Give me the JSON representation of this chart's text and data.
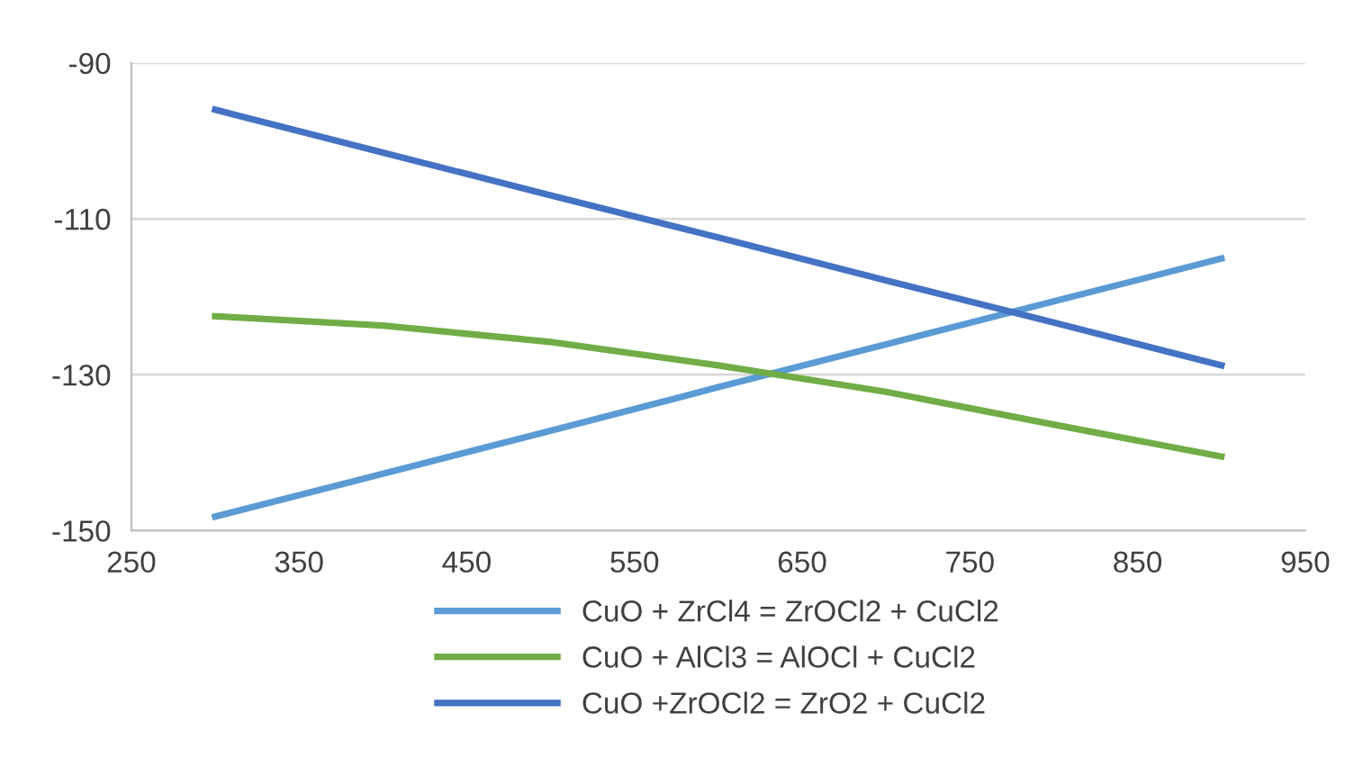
{
  "chart_data": {
    "type": "line",
    "x": [
      300,
      400,
      500,
      600,
      700,
      800,
      900
    ],
    "series": [
      {
        "name": "CuO + ZrCl4 = ZrOCl2 + CuCl2",
        "color": "#5b9bd5",
        "values": [
          -148.2,
          -142.7,
          -137.2,
          -131.6,
          -126.1,
          -120.6,
          -115.1
        ]
      },
      {
        "name": "CuO + AlCl3 = AlOCl + CuCl2",
        "color": "#70ad47",
        "values": [
          -122.5,
          -123.7,
          -125.8,
          -128.8,
          -132.2,
          -136.4,
          -140.5
        ]
      },
      {
        "name": "CuO +ZrOCl2 = ZrO2 + CuCl2",
        "color": "#4472c4",
        "values": [
          -96.0,
          -101.5,
          -107.0,
          -112.4,
          -117.9,
          -123.3,
          -128.8
        ]
      }
    ],
    "xlim": [
      250,
      950
    ],
    "xticks": [
      250,
      350,
      450,
      550,
      650,
      750,
      850,
      950
    ],
    "ylim": [
      -150,
      -90
    ],
    "yticks": [
      -150,
      -130,
      -110,
      -90
    ],
    "grid": "y",
    "legend": "bottom",
    "marker": "none",
    "line_style": "solid"
  }
}
